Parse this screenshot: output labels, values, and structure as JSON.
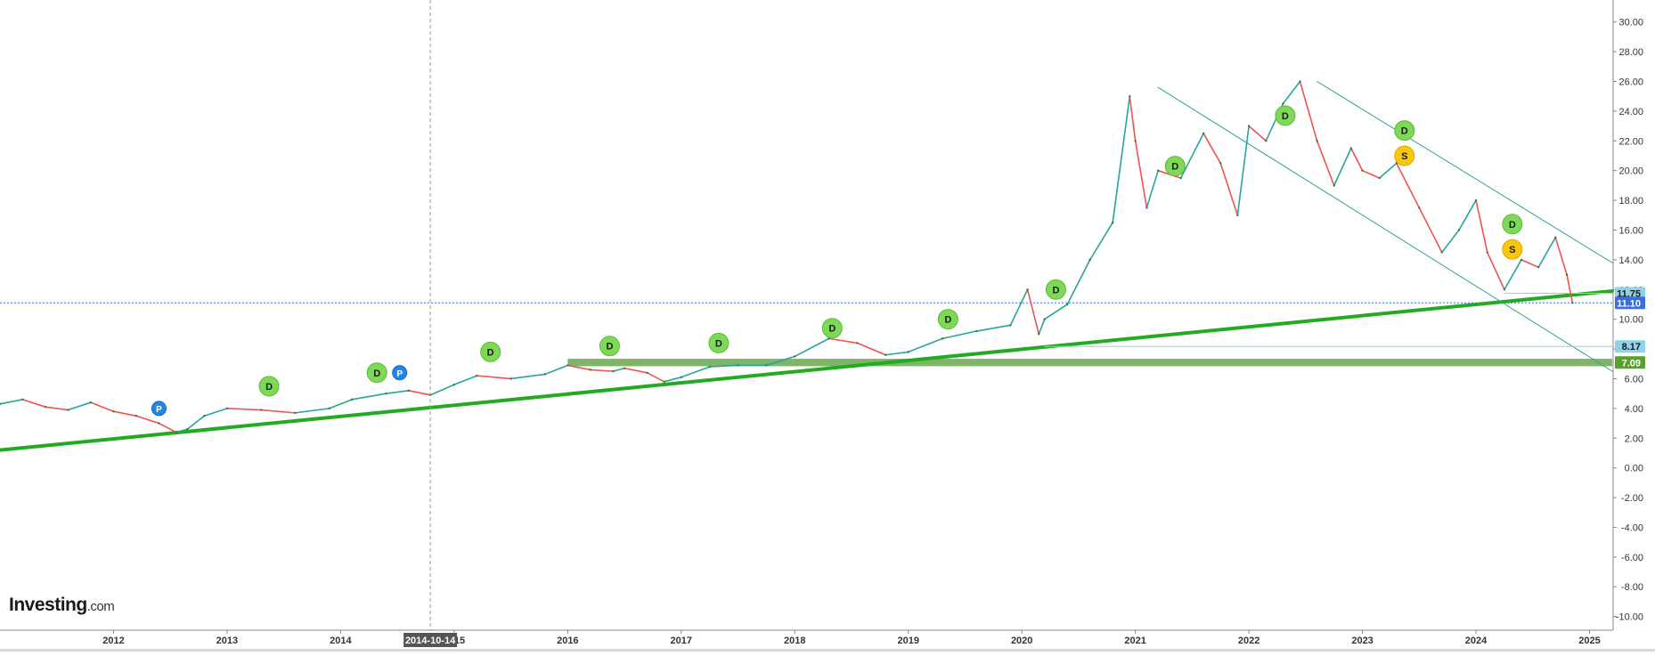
{
  "chart_data": {
    "type": "line",
    "title": "",
    "xlabel": "",
    "ylabel": "",
    "x_ticks": [
      "2012",
      "2013",
      "2014",
      "2015",
      "2016",
      "2017",
      "2018",
      "2019",
      "2020",
      "2021",
      "2022",
      "2023",
      "2024",
      "2025"
    ],
    "y_ticks": [
      "30.00",
      "28.00",
      "26.00",
      "24.00",
      "22.00",
      "20.00",
      "18.00",
      "16.00",
      "14.00",
      "12.00",
      "10.00",
      "8.00",
      "6.00",
      "4.00",
      "2.00",
      "0.00",
      "-2.00",
      "-4.00",
      "-6.00",
      "-8.00",
      "-10.00"
    ],
    "ylim": [
      -10.8,
      31
    ],
    "xlim": [
      2011.0,
      2025.2
    ],
    "grid": false,
    "crosshair_date": "2014-10-14",
    "crosshair_x": 2014.79,
    "price_labels": [
      {
        "value": 11.75,
        "text": "11.75",
        "color": "#8fd3e8",
        "text_color": "#1a1a1a"
      },
      {
        "value": 11.1,
        "text": "11.10",
        "color": "#3b6fe0",
        "text_color": "#ffffff"
      },
      {
        "value": 8.17,
        "text": "8.17",
        "color": "#8fd3e8",
        "text_color": "#1a1a1a"
      },
      {
        "value": 7.09,
        "text": "7.09",
        "color": "#5aa02c",
        "text_color": "#ffffff"
      }
    ],
    "series": [
      {
        "x": [
          2011.0,
          2011.2,
          2011.4,
          2011.6,
          2011.8,
          2012.0,
          2012.2,
          2012.4,
          2012.55,
          2012.65,
          2012.8,
          2013.0,
          2013.3,
          2013.6,
          2013.9,
          2014.1,
          2014.4,
          2014.6,
          2014.79,
          2015.0,
          2015.2,
          2015.5,
          2015.8,
          2016.0,
          2016.2,
          2016.4,
          2016.5,
          2016.7,
          2016.85,
          2017.0,
          2017.25,
          2017.5,
          2017.75,
          2018.0,
          2018.3,
          2018.55,
          2018.8,
          2019.0,
          2019.3,
          2019.6,
          2019.9,
          2020.05,
          2020.15,
          2020.2,
          2020.4,
          2020.6,
          2020.8,
          2020.95,
          2021.0,
          2021.1,
          2021.2,
          2021.4,
          2021.6,
          2021.75,
          2021.9,
          2022.0,
          2022.15,
          2022.3,
          2022.45,
          2022.6,
          2022.75,
          2022.9,
          2023.0,
          2023.15,
          2023.3,
          2023.5,
          2023.7,
          2023.85,
          2024.0,
          2024.1,
          2024.25,
          2024.4,
          2024.55,
          2024.7,
          2024.8,
          2024.85
        ],
        "y": [
          4.3,
          4.6,
          4.1,
          3.9,
          4.4,
          3.8,
          3.5,
          3.0,
          2.4,
          2.6,
          3.5,
          4.0,
          3.9,
          3.7,
          4.0,
          4.6,
          5.0,
          5.2,
          4.9,
          5.6,
          6.2,
          6.0,
          6.3,
          6.9,
          6.6,
          6.5,
          6.7,
          6.4,
          5.8,
          6.1,
          6.8,
          6.9,
          6.9,
          7.5,
          8.7,
          8.4,
          7.6,
          7.8,
          8.7,
          9.2,
          9.6,
          12.0,
          9.0,
          10.0,
          11.0,
          14.0,
          16.5,
          25.0,
          22.0,
          17.5,
          20.0,
          19.5,
          22.5,
          20.5,
          17.0,
          23.0,
          22.0,
          24.5,
          26.0,
          22.0,
          19.0,
          21.5,
          20.0,
          19.5,
          20.5,
          17.5,
          14.5,
          16.0,
          18.0,
          14.5,
          12.0,
          14.0,
          13.5,
          15.5,
          13.0,
          11.1
        ]
      }
    ],
    "trendlines": [
      {
        "name": "support-trendline",
        "x1": 2011.0,
        "y1": 1.2,
        "x2": 2025.2,
        "y2": 11.9,
        "color": "#22aa22",
        "width": 4
      },
      {
        "name": "channel-upper",
        "x1": 2022.6,
        "y1": 26.0,
        "x2": 2025.2,
        "y2": 13.8,
        "color": "#2aa198",
        "width": 1
      },
      {
        "name": "channel-lower",
        "x1": 2021.2,
        "y1": 25.6,
        "x2": 2025.2,
        "y2": 6.5,
        "color": "#2aa198",
        "width": 1
      },
      {
        "name": "level-line-8-17",
        "x1": 2020.2,
        "y1": 8.17,
        "x2": 2025.2,
        "y2": 8.17,
        "color": "#8fd3e8",
        "width": 1
      },
      {
        "name": "level-line-11-75",
        "x1": 2024.25,
        "y1": 11.75,
        "x2": 2025.2,
        "y2": 11.75,
        "color": "#8fd3e8",
        "width": 1
      }
    ],
    "bands": [
      {
        "name": "level-band-7-09",
        "x1": 2016.0,
        "x2": 2025.2,
        "y": 7.09,
        "color": "#6aa84f",
        "height_value": 0.25
      }
    ],
    "current_price_line": {
      "value": 11.1,
      "color": "#3b6fe0"
    },
    "markers": [
      {
        "x": 2012.4,
        "y": 4.0,
        "label": "P",
        "kind": "blue"
      },
      {
        "x": 2013.37,
        "y": 5.5,
        "label": "D",
        "kind": "green"
      },
      {
        "x": 2014.32,
        "y": 6.4,
        "label": "D",
        "kind": "green"
      },
      {
        "x": 2014.52,
        "y": 6.4,
        "label": "P",
        "kind": "blue"
      },
      {
        "x": 2015.32,
        "y": 7.8,
        "label": "D",
        "kind": "green"
      },
      {
        "x": 2016.37,
        "y": 8.2,
        "label": "D",
        "kind": "green"
      },
      {
        "x": 2017.33,
        "y": 8.4,
        "label": "D",
        "kind": "green"
      },
      {
        "x": 2018.33,
        "y": 9.4,
        "label": "D",
        "kind": "green"
      },
      {
        "x": 2019.35,
        "y": 10.0,
        "label": "D",
        "kind": "green"
      },
      {
        "x": 2020.3,
        "y": 12.0,
        "label": "D",
        "kind": "green"
      },
      {
        "x": 2021.35,
        "y": 20.3,
        "label": "D",
        "kind": "green"
      },
      {
        "x": 2022.32,
        "y": 23.7,
        "label": "D",
        "kind": "green"
      },
      {
        "x": 2023.37,
        "y": 22.7,
        "label": "D",
        "kind": "green"
      },
      {
        "x": 2023.37,
        "y": 21.0,
        "label": "S",
        "kind": "yellow"
      },
      {
        "x": 2024.32,
        "y": 16.4,
        "label": "D",
        "kind": "green"
      },
      {
        "x": 2024.32,
        "y": 14.7,
        "label": "S",
        "kind": "yellow"
      }
    ],
    "colors": {
      "up": "#26a69a",
      "down": "#ef5350",
      "axis_text": "#333333",
      "axis_line": "#888888"
    }
  },
  "branding": {
    "logo_text": "Investing",
    "logo_suffix": ".com"
  }
}
